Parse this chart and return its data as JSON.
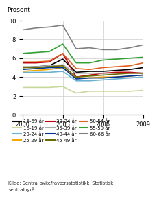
{
  "title_ylabel": "Prosent",
  "ylim": [
    0,
    10
  ],
  "yticks": [
    0,
    2,
    4,
    6,
    8,
    10
  ],
  "xticks": [
    2000,
    2003,
    2006,
    2009
  ],
  "x": [
    2000,
    2001,
    2002,
    2003,
    2004,
    2005,
    2006,
    2007,
    2008,
    2009
  ],
  "series": {
    "16-69 år": {
      "color": "#000000",
      "linewidth": 1.2,
      "values": [
        5.0,
        5.1,
        5.2,
        5.9,
        4.5,
        4.6,
        4.6,
        4.7,
        4.8,
        5.0
      ]
    },
    "16-19 år": {
      "color": "#c8d89a",
      "linewidth": 1.2,
      "values": [
        2.9,
        2.9,
        2.9,
        3.0,
        2.3,
        2.5,
        2.5,
        2.5,
        2.5,
        2.6
      ]
    },
    "20-24 år": {
      "color": "#6ab0d2",
      "linewidth": 1.2,
      "values": [
        4.5,
        4.5,
        4.5,
        4.6,
        3.6,
        3.6,
        3.7,
        3.8,
        3.9,
        4.0
      ]
    },
    "25-29 år": {
      "color": "#f5a800",
      "linewidth": 1.2,
      "values": [
        4.6,
        4.7,
        4.8,
        5.0,
        3.9,
        3.9,
        4.0,
        4.0,
        4.1,
        4.2
      ]
    },
    "30-34 år": {
      "color": "#c0000c",
      "linewidth": 1.2,
      "values": [
        5.5,
        5.5,
        5.6,
        6.5,
        4.0,
        4.2,
        4.4,
        4.5,
        4.5,
        4.4
      ]
    },
    "35-39 år": {
      "color": "#aaaaaa",
      "linewidth": 1.2,
      "values": [
        5.1,
        5.1,
        5.2,
        5.3,
        4.4,
        4.4,
        4.4,
        4.4,
        4.4,
        4.4
      ]
    },
    "40-44 år": {
      "color": "#003399",
      "linewidth": 1.2,
      "values": [
        4.8,
        4.9,
        5.0,
        5.0,
        3.8,
        3.9,
        3.9,
        4.0,
        4.1,
        4.2
      ]
    },
    "45-49 år": {
      "color": "#6b6b00",
      "linewidth": 1.2,
      "values": [
        5.0,
        5.0,
        5.1,
        5.2,
        4.0,
        4.1,
        4.2,
        4.3,
        4.4,
        4.4
      ]
    },
    "50-54 år": {
      "color": "#e06020",
      "linewidth": 1.2,
      "values": [
        5.6,
        5.6,
        5.7,
        6.5,
        4.9,
        4.8,
        5.0,
        5.1,
        5.2,
        5.5
      ]
    },
    "55-59 år": {
      "color": "#30a030",
      "linewidth": 1.2,
      "values": [
        6.5,
        6.6,
        6.7,
        7.5,
        5.5,
        5.5,
        5.8,
        5.9,
        6.0,
        6.1
      ]
    },
    "60-66 år": {
      "color": "#808080",
      "linewidth": 1.2,
      "values": [
        9.0,
        9.2,
        9.3,
        9.5,
        7.0,
        7.1,
        6.9,
        6.9,
        7.1,
        7.4
      ]
    }
  },
  "legend_order": [
    "16-69 år",
    "16-19 år",
    "20-24 år",
    "25-29 år",
    "30-34 år",
    "35-39 år",
    "40-44 år",
    "45-49 år",
    "50-54 år",
    "55-59 år",
    "60-66 år"
  ],
  "source_text": "Kilde: Sentral sykefraværsstatistikk, Statistisk\nsentralbyrå.",
  "background_color": "#ffffff",
  "grid_color": "#cccccc"
}
